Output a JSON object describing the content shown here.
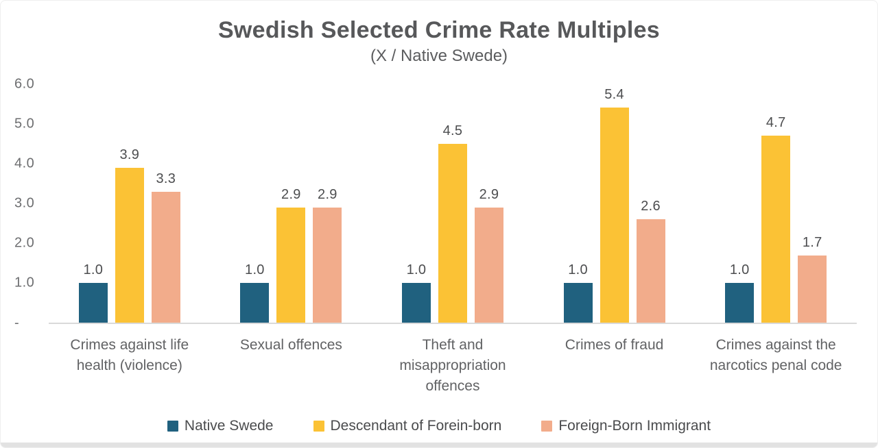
{
  "chart_data": {
    "type": "bar",
    "title": "Swedish Selected Crime Rate Multiples",
    "subtitle": "(X / Native Swede)",
    "categories": [
      "Crimes against life health (violence)",
      "Sexual offences",
      "Theft and misappropriation offences",
      "Crimes of fraud",
      "Crimes against the narcotics penal code"
    ],
    "series": [
      {
        "name": "Native Swede",
        "color": "#20617F",
        "values": [
          1.0,
          1.0,
          1.0,
          1.0,
          1.0
        ]
      },
      {
        "name": "Descendant of Forein-born",
        "color": "#FBC235",
        "values": [
          3.9,
          2.9,
          4.5,
          5.4,
          4.7
        ]
      },
      {
        "name": "Foreign-Born Immigrant",
        "color": "#F2AC8B",
        "values": [
          3.3,
          2.9,
          2.9,
          2.6,
          1.7
        ]
      }
    ],
    "ylim": [
      0,
      6.0
    ],
    "y_ticks": [
      {
        "label": "6.0",
        "value": 6.0
      },
      {
        "label": "5.0",
        "value": 5.0
      },
      {
        "label": "4.0",
        "value": 4.0
      },
      {
        "label": "3.0",
        "value": 3.0
      },
      {
        "label": "2.0",
        "value": 2.0
      },
      {
        "label": "1.0",
        "value": 1.0
      },
      {
        "label": "-",
        "value": 0.0
      }
    ],
    "grid": false,
    "value_labels": true,
    "value_label_format": "0.0",
    "legend_position": "bottom",
    "axis_line_color": "#d9d9d9",
    "text_colors": {
      "title": "#57585a",
      "subtitle": "#5b5c5e",
      "ticks": "#6d6e70",
      "value_labels": "#4c4d4f",
      "category_labels": "#616264",
      "legend": "#4a4b4d"
    }
  }
}
